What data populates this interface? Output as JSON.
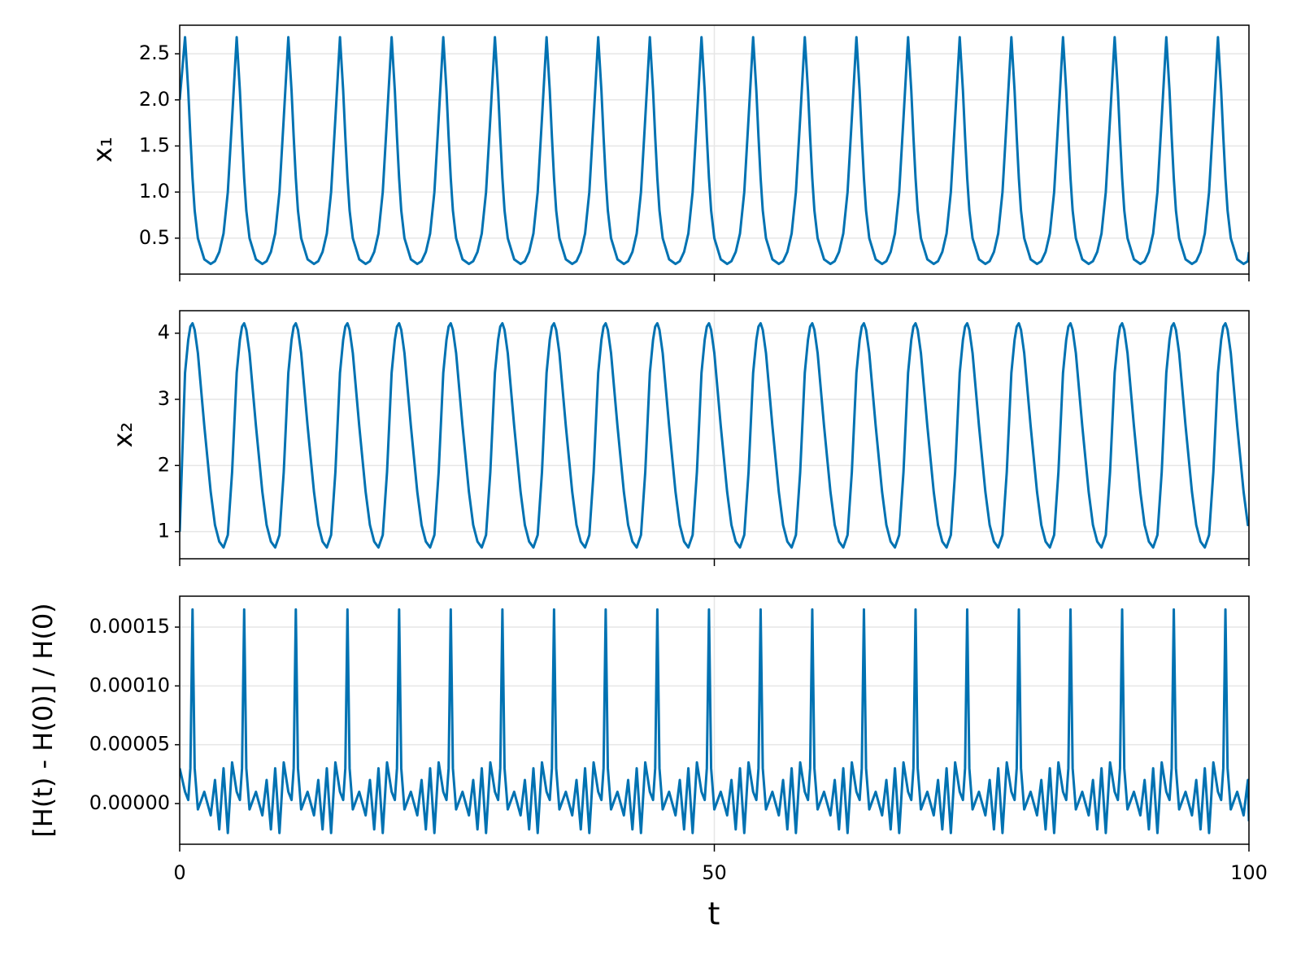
{
  "chart_data": {
    "type": "line",
    "xlabel": "t",
    "xlim": [
      0,
      100
    ],
    "xticks": [
      0,
      50,
      100
    ],
    "grid": true,
    "x": [
      0,
      0.5,
      0.8,
      1,
      1.2,
      1.4,
      1.7,
      2.3,
      2.9,
      3.3,
      3.7,
      4.1,
      4.5,
      4.9,
      5.33,
      5.63,
      5.83,
      6.03,
      6.23,
      6.53,
      7.13,
      7.73,
      8.13,
      8.53,
      8.93,
      9.33,
      9.73,
      10.16,
      10.46,
      10.66,
      10.86,
      11.06,
      11.36,
      11.96,
      12.56,
      12.96,
      13.36,
      13.76,
      14.16,
      14.56,
      14.99,
      15.29,
      15.49,
      15.69,
      15.89,
      16.19,
      16.79,
      17.39,
      17.79,
      18.19,
      18.59,
      18.99,
      19.39,
      19.82,
      20.12,
      20.32,
      20.52,
      20.72,
      21.02,
      21.62,
      22.22,
      22.62,
      23.02,
      23.42,
      23.82,
      24.22,
      24.65,
      24.95,
      25.15,
      25.35,
      25.55,
      25.85,
      26.45,
      27.05,
      27.45,
      27.85,
      28.25,
      28.65,
      29.05,
      29.48,
      29.78,
      29.98,
      30.18,
      30.38,
      30.68,
      31.28,
      31.88,
      32.28,
      32.68,
      33.08,
      33.48,
      33.88,
      34.31,
      34.61,
      34.81,
      35.01,
      35.21,
      35.51,
      36.11,
      36.71,
      37.11,
      37.51,
      37.91,
      38.31,
      38.71,
      39.14,
      39.44,
      39.64,
      39.84,
      40.04,
      40.34,
      40.94,
      41.54,
      41.94,
      42.34,
      42.74,
      43.14,
      43.54,
      43.97,
      44.27,
      44.47,
      44.67,
      44.87,
      45.17,
      45.77,
      46.37,
      46.77,
      47.17,
      47.57,
      47.97,
      48.37,
      48.8,
      49.1,
      49.3,
      49.5,
      49.7,
      50,
      50.6,
      51.2,
      51.6,
      52,
      52.4,
      52.8,
      53.2,
      53.63,
      53.93,
      54.13,
      54.33,
      54.53,
      54.83,
      55.43,
      56.03,
      56.43,
      56.83,
      57.23,
      57.63,
      58.03,
      58.46,
      58.76,
      58.96,
      59.16,
      59.36,
      59.66,
      60.26,
      60.86,
      61.26,
      61.66,
      62.06,
      62.46,
      62.86,
      63.29,
      63.59,
      63.79,
      63.99,
      64.19,
      64.49,
      65.09,
      65.69,
      66.09,
      66.49,
      66.89,
      67.29,
      67.69,
      68.12,
      68.42,
      68.62,
      68.82,
      69.02,
      69.32,
      69.92,
      70.52,
      70.92,
      71.32,
      71.72,
      72.12,
      72.52,
      72.95,
      73.25,
      73.45,
      73.65,
      73.85,
      74.15,
      74.75,
      75.35,
      75.75,
      76.15,
      76.55,
      76.95,
      77.35,
      77.78,
      78.08,
      78.28,
      78.48,
      78.68,
      78.98,
      79.58,
      80.18,
      80.58,
      80.98,
      81.38,
      81.78,
      82.18,
      82.61,
      82.91,
      83.11,
      83.31,
      83.51,
      83.81,
      84.41,
      85.01,
      85.41,
      85.81,
      86.21,
      86.61,
      87.01,
      87.44,
      87.74,
      87.94,
      88.14,
      88.34,
      88.64,
      89.24,
      89.84,
      90.24,
      90.64,
      91.04,
      91.44,
      91.84,
      92.27,
      92.57,
      92.77,
      92.97,
      93.17,
      93.47,
      94.07,
      94.67,
      95.07,
      95.47,
      95.87,
      96.27,
      96.67,
      97.1,
      97.4,
      97.6,
      97.8,
      98,
      98.3,
      98.9,
      99.5,
      99.9,
      100
    ],
    "panels": [
      {
        "ylabel": "x₁",
        "color": "#0072b2",
        "ylim": [
          0.11,
          2.81
        ],
        "yticks": [
          0.5,
          {
            "value": 1,
            "label": "1.0"
          },
          1.5,
          {
            "value": 2,
            "label": "2.0"
          },
          2.5
        ],
        "values": [
          2.0,
          2.68,
          2.1,
          1.6,
          1.15,
          0.8,
          0.5,
          0.27,
          0.22,
          0.25,
          0.35,
          0.55,
          1.0,
          1.8,
          2.68,
          2.1,
          1.6,
          1.15,
          0.8,
          0.5,
          0.27,
          0.22,
          0.25,
          0.35,
          0.55,
          1.0,
          1.8,
          2.68,
          2.1,
          1.6,
          1.15,
          0.8,
          0.5,
          0.27,
          0.22,
          0.25,
          0.35,
          0.55,
          1.0,
          1.8,
          2.68,
          2.1,
          1.6,
          1.15,
          0.8,
          0.5,
          0.27,
          0.22,
          0.25,
          0.35,
          0.55,
          1.0,
          1.8,
          2.68,
          2.1,
          1.6,
          1.15,
          0.8,
          0.5,
          0.27,
          0.22,
          0.25,
          0.35,
          0.55,
          1.0,
          1.8,
          2.68,
          2.1,
          1.6,
          1.15,
          0.8,
          0.5,
          0.27,
          0.22,
          0.25,
          0.35,
          0.55,
          1.0,
          1.8,
          2.68,
          2.1,
          1.6,
          1.15,
          0.8,
          0.5,
          0.27,
          0.22,
          0.25,
          0.35,
          0.55,
          1.0,
          1.8,
          2.68,
          2.1,
          1.6,
          1.15,
          0.8,
          0.5,
          0.27,
          0.22,
          0.25,
          0.35,
          0.55,
          1.0,
          1.8,
          2.68,
          2.1,
          1.6,
          1.15,
          0.8,
          0.5,
          0.27,
          0.22,
          0.25,
          0.35,
          0.55,
          1.0,
          1.8,
          2.68,
          2.1,
          1.6,
          1.15,
          0.8,
          0.5,
          0.27,
          0.22,
          0.25,
          0.35,
          0.55,
          1.0,
          1.8,
          2.68,
          2.1,
          1.6,
          1.15,
          0.8,
          0.5,
          0.27,
          0.22,
          0.25,
          0.35,
          0.55,
          1.0,
          1.8,
          2.68,
          2.1,
          1.6,
          1.15,
          0.8,
          0.5,
          0.27,
          0.22,
          0.25,
          0.35,
          0.55,
          1.0,
          1.8,
          2.68,
          2.1,
          1.6,
          1.15,
          0.8,
          0.5,
          0.27,
          0.22,
          0.25,
          0.35,
          0.55,
          1.0,
          1.8,
          2.68,
          2.1,
          1.6,
          1.15,
          0.8,
          0.5,
          0.27,
          0.22,
          0.25,
          0.35,
          0.55,
          1.0,
          1.8,
          2.68,
          2.1,
          1.6,
          1.15,
          0.8,
          0.5,
          0.27,
          0.22,
          0.25,
          0.35,
          0.55,
          1.0,
          1.8,
          2.68,
          2.1,
          1.6,
          1.15,
          0.8,
          0.5,
          0.27,
          0.22,
          0.25,
          0.35,
          0.55,
          1.0,
          1.8,
          2.68,
          2.1,
          1.6,
          1.15,
          0.8,
          0.5,
          0.27,
          0.22,
          0.25,
          0.35,
          0.55,
          1.0,
          1.8,
          2.68,
          2.1,
          1.6,
          1.15,
          0.8,
          0.5,
          0.27,
          0.22,
          0.25,
          0.35,
          0.55,
          1.0,
          1.8,
          2.68,
          2.1,
          1.6,
          1.15,
          0.8,
          0.5,
          0.27,
          0.22,
          0.25,
          0.35,
          0.55,
          1.0,
          1.8,
          2.68,
          2.1,
          1.6,
          1.15,
          0.8,
          0.5,
          0.27,
          0.22,
          0.25,
          0.35,
          0.55,
          1.0,
          1.8,
          2.68,
          2.1,
          1.6,
          1.15,
          0.8,
          0.5,
          0.27,
          0.22,
          0.25,
          0.35
        ]
      },
      {
        "ylabel": "x₂",
        "color": "#0072b2",
        "ylim": [
          0.59,
          4.34
        ],
        "yticks": [
          1,
          2,
          3,
          4
        ],
        "values": [
          1.0,
          3.4,
          3.9,
          4.1,
          4.15,
          4.05,
          3.7,
          2.6,
          1.6,
          1.1,
          0.85,
          0.76,
          0.95,
          1.9,
          3.4,
          3.9,
          4.1,
          4.15,
          4.05,
          3.7,
          2.6,
          1.6,
          1.1,
          0.85,
          0.76,
          0.95,
          1.9,
          3.4,
          3.9,
          4.1,
          4.15,
          4.05,
          3.7,
          2.6,
          1.6,
          1.1,
          0.85,
          0.76,
          0.95,
          1.9,
          3.4,
          3.9,
          4.1,
          4.15,
          4.05,
          3.7,
          2.6,
          1.6,
          1.1,
          0.85,
          0.76,
          0.95,
          1.9,
          3.4,
          3.9,
          4.1,
          4.15,
          4.05,
          3.7,
          2.6,
          1.6,
          1.1,
          0.85,
          0.76,
          0.95,
          1.9,
          3.4,
          3.9,
          4.1,
          4.15,
          4.05,
          3.7,
          2.6,
          1.6,
          1.1,
          0.85,
          0.76,
          0.95,
          1.9,
          3.4,
          3.9,
          4.1,
          4.15,
          4.05,
          3.7,
          2.6,
          1.6,
          1.1,
          0.85,
          0.76,
          0.95,
          1.9,
          3.4,
          3.9,
          4.1,
          4.15,
          4.05,
          3.7,
          2.6,
          1.6,
          1.1,
          0.85,
          0.76,
          0.95,
          1.9,
          3.4,
          3.9,
          4.1,
          4.15,
          4.05,
          3.7,
          2.6,
          1.6,
          1.1,
          0.85,
          0.76,
          0.95,
          1.9,
          3.4,
          3.9,
          4.1,
          4.15,
          4.05,
          3.7,
          2.6,
          1.6,
          1.1,
          0.85,
          0.76,
          0.95,
          1.9,
          3.4,
          3.9,
          4.1,
          4.15,
          4.05,
          3.7,
          2.6,
          1.6,
          1.1,
          0.85,
          0.76,
          0.95,
          1.9,
          3.4,
          3.9,
          4.1,
          4.15,
          4.05,
          3.7,
          2.6,
          1.6,
          1.1,
          0.85,
          0.76,
          0.95,
          1.9,
          3.4,
          3.9,
          4.1,
          4.15,
          4.05,
          3.7,
          2.6,
          1.6,
          1.1,
          0.85,
          0.76,
          0.95,
          1.9,
          3.4,
          3.9,
          4.1,
          4.15,
          4.05,
          3.7,
          2.6,
          1.6,
          1.1,
          0.85,
          0.76,
          0.95,
          1.9,
          3.4,
          3.9,
          4.1,
          4.15,
          4.05,
          3.7,
          2.6,
          1.6,
          1.1,
          0.85,
          0.76,
          0.95,
          1.9,
          3.4,
          3.9,
          4.1,
          4.15,
          4.05,
          3.7,
          2.6,
          1.6,
          1.1,
          0.85,
          0.76,
          0.95,
          1.9,
          3.4,
          3.9,
          4.1,
          4.15,
          4.05,
          3.7,
          2.6,
          1.6,
          1.1,
          0.85,
          0.76,
          0.95,
          1.9,
          3.4,
          3.9,
          4.1,
          4.15,
          4.05,
          3.7,
          2.6,
          1.6,
          1.1,
          0.85,
          0.76,
          0.95,
          1.9,
          3.4,
          3.9,
          4.1,
          4.15,
          4.05,
          3.7,
          2.6,
          1.6,
          1.1,
          0.85,
          0.76,
          0.95,
          1.9,
          3.4,
          3.9,
          4.1,
          4.15,
          4.05,
          3.7,
          2.6,
          1.6,
          1.1,
          0.85,
          0.76,
          0.95,
          1.9,
          3.4,
          3.9,
          4.1,
          4.15,
          4.05,
          3.7,
          2.6,
          1.6,
          1.1,
          1.1
        ]
      },
      {
        "ylabel": "[H(t) - H(0)] / H(0)",
        "color": "#0072b2",
        "ylim": [
          -3.46e-05,
          0.0001763
        ],
        "yticks": [
          {
            "value": 0,
            "label": "0.00000"
          },
          {
            "value": 5e-05,
            "label": "0.00005"
          },
          {
            "value": 0.0001,
            "label": "0.00010"
          },
          {
            "value": 0.00015,
            "label": "0.00015"
          }
        ],
        "values": [
          3e-05,
          1e-05,
          3e-06,
          3e-05,
          0.000165,
          3e-05,
          -5e-06,
          1e-05,
          -1e-05,
          2e-05,
          -2.2e-05,
          3e-05,
          -2.5e-05,
          3.5e-05,
          1e-05,
          3e-06,
          3e-05,
          0.000165,
          3e-05,
          -5e-06,
          1e-05,
          -1e-05,
          2e-05,
          -2.2e-05,
          3e-05,
          -2.5e-05,
          3.5e-05,
          1e-05,
          3e-06,
          3e-05,
          0.000165,
          3e-05,
          -5e-06,
          1e-05,
          -1e-05,
          2e-05,
          -2.2e-05,
          3e-05,
          -2.5e-05,
          3.5e-05,
          1e-05,
          3e-06,
          3e-05,
          0.000165,
          3e-05,
          -5e-06,
          1e-05,
          -1e-05,
          2e-05,
          -2.2e-05,
          3e-05,
          -2.5e-05,
          3.5e-05,
          1e-05,
          3e-06,
          3e-05,
          0.000165,
          3e-05,
          -5e-06,
          1e-05,
          -1e-05,
          2e-05,
          -2.2e-05,
          3e-05,
          -2.5e-05,
          3.5e-05,
          1e-05,
          3e-06,
          3e-05,
          0.000165,
          3e-05,
          -5e-06,
          1e-05,
          -1e-05,
          2e-05,
          -2.2e-05,
          3e-05,
          -2.5e-05,
          3.5e-05,
          1e-05,
          3e-06,
          3e-05,
          0.000165,
          3e-05,
          -5e-06,
          1e-05,
          -1e-05,
          2e-05,
          -2.2e-05,
          3e-05,
          -2.5e-05,
          3.5e-05,
          1e-05,
          3e-06,
          3e-05,
          0.000165,
          3e-05,
          -5e-06,
          1e-05,
          -1e-05,
          2e-05,
          -2.2e-05,
          3e-05,
          -2.5e-05,
          3.5e-05,
          1e-05,
          3e-06,
          3e-05,
          0.000165,
          3e-05,
          -5e-06,
          1e-05,
          -1e-05,
          2e-05,
          -2.2e-05,
          3e-05,
          -2.5e-05,
          3.5e-05,
          1e-05,
          3e-06,
          3e-05,
          0.000165,
          3e-05,
          -5e-06,
          1e-05,
          -1e-05,
          2e-05,
          -2.2e-05,
          3e-05,
          -2.5e-05,
          3.5e-05,
          1e-05,
          3e-06,
          3e-05,
          0.000165,
          3e-05,
          -5e-06,
          1e-05,
          -1e-05,
          2e-05,
          -2.2e-05,
          3e-05,
          -2.5e-05,
          3.5e-05,
          1e-05,
          3e-06,
          3e-05,
          0.000165,
          3e-05,
          -5e-06,
          1e-05,
          -1e-05,
          2e-05,
          -2.2e-05,
          3e-05,
          -2.5e-05,
          3.5e-05,
          1e-05,
          3e-06,
          3e-05,
          0.000165,
          3e-05,
          -5e-06,
          1e-05,
          -1e-05,
          2e-05,
          -2.2e-05,
          3e-05,
          -2.5e-05,
          3.5e-05,
          1e-05,
          3e-06,
          3e-05,
          0.000165,
          3e-05,
          -5e-06,
          1e-05,
          -1e-05,
          2e-05,
          -2.2e-05,
          3e-05,
          -2.5e-05,
          3.5e-05,
          1e-05,
          3e-06,
          3e-05,
          0.000165,
          3e-05,
          -5e-06,
          1e-05,
          -1e-05,
          2e-05,
          -2.2e-05,
          3e-05,
          -2.5e-05,
          3.5e-05,
          1e-05,
          3e-06,
          3e-05,
          0.000165,
          3e-05,
          -5e-06,
          1e-05,
          -1e-05,
          2e-05,
          -2.2e-05,
          3e-05,
          -2.5e-05,
          3.5e-05,
          1e-05,
          3e-06,
          3e-05,
          0.000165,
          3e-05,
          -5e-06,
          1e-05,
          -1e-05,
          2e-05,
          -2.2e-05,
          3e-05,
          -2.5e-05,
          3.5e-05,
          1e-05,
          3e-06,
          3e-05,
          0.000165,
          3e-05,
          -5e-06,
          1e-05,
          -1e-05,
          2e-05,
          -2.2e-05,
          3e-05,
          -2.5e-05,
          3.5e-05,
          1e-05,
          3e-06,
          3e-05,
          0.000165,
          3e-05,
          -5e-06,
          1e-05,
          -1e-05,
          2e-05,
          -2.2e-05,
          3e-05,
          -2.5e-05,
          3.5e-05,
          1e-05,
          3e-06,
          3e-05,
          0.000165,
          3e-05,
          -5e-06,
          1e-05,
          -1e-05,
          2e-05,
          -2.2e-05,
          3e-05,
          -2.5e-05,
          3.5e-05,
          1e-05,
          3e-06,
          3e-05,
          0.000165,
          3e-05,
          -5e-06,
          1e-05,
          -1e-05,
          2e-05,
          -1.5e-05
        ]
      }
    ]
  }
}
